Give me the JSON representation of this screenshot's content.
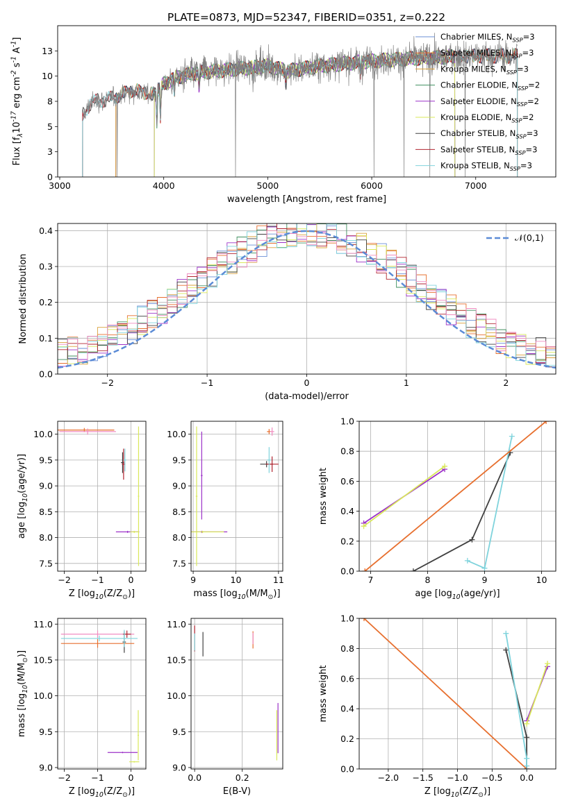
{
  "title": "PLATE=0873, MJD=52347, FIBERID=0351, z=0.222",
  "chart_data": [
    {
      "type": "line",
      "id": "spectrum",
      "xlabel": "wavelength [Angstrom, rest frame]",
      "ylabel": "Flux [f$_\\lambda$10$^{-17}$ erg cm$^{-2}$ s$^{-1}$ A$^{-1}$]",
      "xlim": [
        2980,
        7770
      ],
      "ylim": [
        0,
        15
      ],
      "xticks": [
        3000,
        4000,
        5000,
        6000,
        7000
      ],
      "yticks": [
        0.0,
        2.5,
        5.0,
        7.5,
        10.0,
        12.5
      ],
      "grid": false,
      "legend_position": "top-right",
      "observed_spectrum_color": "#808080",
      "series": [
        {
          "name": "Chabrier MILES, N$_{SSP}$=3",
          "color": "#6a8fd6",
          "start": 3540,
          "end": 7400
        },
        {
          "name": "Salpeter MILES, N$_{SSP}$=3",
          "color": "#e76f2e",
          "start": 3540,
          "end": 7400
        },
        {
          "name": "Kroupa MILES, N$_{SSP}$=3",
          "color": "#d9a03a",
          "start": 3540,
          "end": 7400
        },
        {
          "name": "Chabrier ELODIE, N$_{SSP}$=2",
          "color": "#3f8f5f",
          "start": 3910,
          "end": 6800
        },
        {
          "name": "Salpeter ELODIE, N$_{SSP}$=2",
          "color": "#9b30c8",
          "start": 3910,
          "end": 6800
        },
        {
          "name": "Kroupa ELODIE, N$_{SSP}$=2",
          "color": "#d9e85a",
          "start": 3910,
          "end": 6800
        },
        {
          "name": "Chabrier STELIB, N$_{SSP}$=3",
          "color": "#404040",
          "start": 3220,
          "end": 7400
        },
        {
          "name": "Salpeter STELIB, N$_{SSP}$=3",
          "color": "#b0232f",
          "start": 3220,
          "end": 7400
        },
        {
          "name": "Kroupa STELIB, N$_{SSP}$=3",
          "color": "#7fd3dc",
          "start": 3220,
          "end": 7400
        }
      ],
      "continuum_anchors": {
        "x": [
          3220,
          3300,
          3500,
          3700,
          3900,
          4000,
          4100,
          4300,
          4600,
          5000,
          5200,
          5500,
          6000,
          6500,
          7000,
          7400
        ],
        "y": [
          6.0,
          7.4,
          7.8,
          8.6,
          8.2,
          9.2,
          9.8,
          10.3,
          10.6,
          11.0,
          10.5,
          11.0,
          11.5,
          11.8,
          12.0,
          12.0
        ]
      }
    },
    {
      "type": "step",
      "id": "residuals",
      "xlabel": "(data-model)/error",
      "ylabel": "Normed distribution",
      "xlim": [
        -2.5,
        2.5
      ],
      "ylim": [
        0,
        0.42
      ],
      "xticks": [
        -2,
        -1,
        0,
        1,
        2
      ],
      "yticks": [
        0.0,
        0.1,
        0.2,
        0.3,
        0.4
      ],
      "grid": true,
      "legend_position": "top-right",
      "gaussian": {
        "name": "$\\mathcal{N}(0,1)$",
        "mu": 0,
        "sigma": 1,
        "color": "#5b8bd6"
      },
      "bin_width": 0.1,
      "series_colors": [
        "#6a8fd6",
        "#e76f2e",
        "#d9a03a",
        "#3f8f5f",
        "#9b30c8",
        "#d9e85a",
        "#404040",
        "#b0232f",
        "#7fd3dc",
        "#f08cc0"
      ]
    },
    {
      "type": "scatter",
      "id": "age-vs-Z",
      "xlabel": "Z [log$_{10}$(Z/Z$_\\odot$)]",
      "ylabel": "age  [log$_{10}$(age/yr)]",
      "xlim": [
        -2.2,
        0.45
      ],
      "ylim": [
        7.35,
        10.25
      ],
      "xticks": [
        -2,
        -1,
        0
      ],
      "yticks": [
        7.5,
        8.0,
        8.5,
        9.0,
        9.5,
        10.0
      ],
      "grid": true,
      "points": [
        {
          "x": -1.4,
          "y": 10.08,
          "xerr": 0.9,
          "yerr": 0.04,
          "color": "#e76f2e"
        },
        {
          "x": -1.3,
          "y": 10.05,
          "xerr": 0.85,
          "yerr": 0.06,
          "color": "#f08cc0"
        },
        {
          "x": -0.25,
          "y": 9.45,
          "xerr": 0.05,
          "yerr": 0.2,
          "color": "#404040"
        },
        {
          "x": -0.22,
          "y": 9.42,
          "xerr": 0.05,
          "yerr": 0.3,
          "color": "#b0232f"
        },
        {
          "x": -0.18,
          "y": 9.5,
          "xerr": 0.04,
          "yerr": 0.22,
          "color": "#7fd3dc"
        },
        {
          "x": -0.1,
          "y": 8.11,
          "xerr": 0.35,
          "yerr": 0.02,
          "color": "#9b30c8"
        },
        {
          "x": 0.1,
          "y": 8.11,
          "xerr": 0.12,
          "yerr": 0.02,
          "color": "#d9e85a"
        },
        {
          "x": 0.23,
          "y": 8.8,
          "xerr": 0.02,
          "yerr": 1.35,
          "color": "#d9e85a"
        }
      ]
    },
    {
      "type": "scatter",
      "id": "age-vs-mass",
      "xlabel": "mass [log$_{10}$(M/M$_\\odot$)]",
      "ylabel": "",
      "xlim": [
        8.95,
        11.1
      ],
      "ylim": [
        7.35,
        10.25
      ],
      "xticks": [
        9,
        10,
        11
      ],
      "yticks": [
        7.5,
        8.0,
        8.5,
        9.0,
        9.5,
        10.0
      ],
      "grid": true,
      "points": [
        {
          "x": 9.08,
          "y": 8.8,
          "xerr": 0.02,
          "yerr": 1.35,
          "color": "#d9e85a"
        },
        {
          "x": 9.2,
          "y": 8.11,
          "xerr": 0.6,
          "yerr": 0.02,
          "color": "#9b30c8"
        },
        {
          "x": 9.2,
          "y": 9.2,
          "xerr": 0.02,
          "yerr": 0.85,
          "color": "#9b30c8"
        },
        {
          "x": 9.22,
          "y": 8.11,
          "xerr": 0.5,
          "yerr": 0.02,
          "color": "#d9e85a"
        },
        {
          "x": 10.72,
          "y": 9.42,
          "xerr": 0.15,
          "yerr": 0.06,
          "color": "#404040"
        },
        {
          "x": 10.85,
          "y": 9.42,
          "xerr": 0.15,
          "yerr": 0.15,
          "color": "#b0232f"
        },
        {
          "x": 10.78,
          "y": 9.5,
          "xerr": 0.05,
          "yerr": 0.25,
          "color": "#7fd3dc"
        },
        {
          "x": 10.78,
          "y": 10.05,
          "xerr": 0.05,
          "yerr": 0.05,
          "color": "#e76f2e"
        },
        {
          "x": 10.85,
          "y": 10.05,
          "xerr": 0.05,
          "yerr": 0.08,
          "color": "#f08cc0"
        }
      ]
    },
    {
      "type": "line",
      "id": "mass-weight-vs-age",
      "xlabel": "age  [log$_{10}$(age/yr)]",
      "ylabel": "mass weight",
      "xlim": [
        6.8,
        10.25
      ],
      "ylim": [
        0,
        1
      ],
      "xticks": [
        7,
        8,
        9,
        10
      ],
      "yticks": [
        0.0,
        0.2,
        0.4,
        0.6,
        0.8,
        1.0
      ],
      "grid": true,
      "series": [
        {
          "color": "#9b30c8",
          "x": [
            6.88,
            8.3
          ],
          "y": [
            0.32,
            0.68
          ]
        },
        {
          "color": "#d9e85a",
          "x": [
            6.88,
            8.3
          ],
          "y": [
            0.3,
            0.7
          ]
        },
        {
          "color": "#404040",
          "x": [
            7.75,
            8.78,
            9.45
          ],
          "y": [
            0.0,
            0.21,
            0.79
          ]
        },
        {
          "color": "#7fd3dc",
          "x": [
            8.7,
            9.0,
            9.48
          ],
          "y": [
            0.07,
            0.02,
            0.9
          ]
        },
        {
          "color": "#e76f2e",
          "x": [
            6.9,
            10.08
          ],
          "y": [
            0.0,
            1.0
          ]
        }
      ]
    },
    {
      "type": "scatter",
      "id": "mass-vs-Z",
      "xlabel": "Z [log$_{10}$(Z/Z$_\\odot$)]",
      "ylabel": "mass [log$_{10}$(M/M$_\\odot$)]",
      "xlim": [
        -2.2,
        0.45
      ],
      "ylim": [
        8.98,
        11.08
      ],
      "xticks": [
        -2,
        -1,
        0
      ],
      "yticks": [
        9.0,
        9.5,
        10.0,
        10.5,
        11.0
      ],
      "grid": true,
      "points": [
        {
          "x": -1.0,
          "y": 10.86,
          "xerr": 1.1,
          "yerr": 0.05,
          "color": "#f08cc0"
        },
        {
          "x": -1.0,
          "y": 10.73,
          "xerr": 1.1,
          "yerr": 0.06,
          "color": "#e76f2e"
        },
        {
          "x": -0.95,
          "y": 10.8,
          "xerr": 1.15,
          "yerr": 0.04,
          "color": "#7fd3dc"
        },
        {
          "x": -0.2,
          "y": 10.75,
          "xerr": 0.05,
          "yerr": 0.15,
          "color": "#404040"
        },
        {
          "x": -0.12,
          "y": 10.86,
          "xerr": 0.12,
          "yerr": 0.05,
          "color": "#b0232f"
        },
        {
          "x": -0.2,
          "y": 10.8,
          "xerr": 0.05,
          "yerr": 0.12,
          "color": "#7fd3dc"
        },
        {
          "x": -0.25,
          "y": 9.21,
          "xerr": 0.45,
          "yerr": 0.01,
          "color": "#9b30c8"
        },
        {
          "x": 0.1,
          "y": 9.08,
          "xerr": 0.15,
          "yerr": 0.01,
          "color": "#d9e85a"
        },
        {
          "x": 0.22,
          "y": 9.45,
          "xerr": 0.02,
          "yerr": 0.35,
          "color": "#d9e85a"
        }
      ]
    },
    {
      "type": "scatter",
      "id": "mass-vs-EBV",
      "xlabel": "E(B-V)",
      "ylabel": "",
      "xlim": [
        -0.015,
        0.37
      ],
      "ylim": [
        8.98,
        11.08
      ],
      "xticks": [
        0.0,
        0.2
      ],
      "yticks": [
        9.0,
        9.5,
        10.0,
        10.5,
        11.0
      ],
      "grid": true,
      "points": [
        {
          "x": 0.0,
          "y": 10.8,
          "xerr": 0.0,
          "yerr": 0.18,
          "color": "#b0232f"
        },
        {
          "x": 0.0,
          "y": 10.75,
          "xerr": 0.0,
          "yerr": 0.12,
          "color": "#7fd3dc"
        },
        {
          "x": 0.035,
          "y": 10.72,
          "xerr": 0.0,
          "yerr": 0.17,
          "color": "#404040"
        },
        {
          "x": 0.245,
          "y": 10.78,
          "xerr": 0.0,
          "yerr": 0.12,
          "color": "#e76f2e"
        },
        {
          "x": 0.245,
          "y": 10.8,
          "xerr": 0.0,
          "yerr": 0.08,
          "color": "#f08cc0"
        },
        {
          "x": 0.345,
          "y": 9.45,
          "xerr": 0.0,
          "yerr": 0.35,
          "color": "#d9e85a"
        },
        {
          "x": 0.35,
          "y": 9.55,
          "xerr": 0.0,
          "yerr": 0.35,
          "color": "#9b30c8"
        }
      ]
    },
    {
      "type": "line",
      "id": "mass-weight-vs-Z",
      "xlabel": "Z [log$_{10}$(Z/Z$_\\odot$)]",
      "ylabel": "mass weight",
      "xlim": [
        -2.42,
        0.42
      ],
      "ylim": [
        0,
        1
      ],
      "xticks": [
        -2.0,
        -1.5,
        -1.0,
        -0.5,
        0.0
      ],
      "yticks": [
        0.0,
        0.2,
        0.4,
        0.6,
        0.8,
        1.0
      ],
      "grid": true,
      "series": [
        {
          "color": "#e76f2e",
          "x": [
            -2.35,
            0.0
          ],
          "y": [
            1.0,
            0.0
          ]
        },
        {
          "color": "#404040",
          "x": [
            -0.3,
            0.0,
            0.0
          ],
          "y": [
            0.79,
            0.21,
            0.0
          ]
        },
        {
          "color": "#7fd3dc",
          "x": [
            -0.3,
            0.0,
            0.0
          ],
          "y": [
            0.9,
            0.07,
            0.02
          ]
        },
        {
          "color": "#9b30c8",
          "x": [
            0.0,
            0.3
          ],
          "y": [
            0.32,
            0.68
          ]
        },
        {
          "color": "#d9e85a",
          "x": [
            0.0,
            0.3
          ],
          "y": [
            0.3,
            0.7
          ]
        }
      ]
    }
  ]
}
